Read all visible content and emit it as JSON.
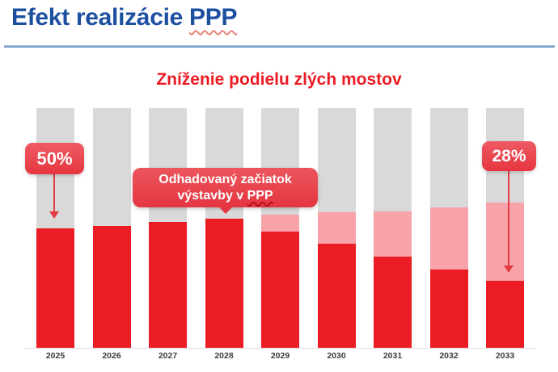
{
  "header": {
    "title_prefix": "Efekt realizácie ",
    "title_ppp": "PPP",
    "title_color": "#1d4fa1",
    "rule_color": "#7ba0cc"
  },
  "annotations": {
    "start_badge": {
      "label": "50%",
      "target_category": "2025"
    },
    "end_badge": {
      "label": "28%",
      "target_category": "2033"
    },
    "callout": {
      "line1": "Odhadovaný začiatok",
      "line2_prefix": "výstavby v ",
      "line2_ppp": "PPP",
      "target_category": "2028"
    },
    "badge_color": "#e7434c",
    "arrow_color": "#e23b44"
  },
  "chart_data": {
    "type": "bar",
    "stacked": true,
    "title": "Zníženie podielu zlých mostov",
    "title_color": "#ec1c24",
    "categories": [
      "2025",
      "2026",
      "2027",
      "2028",
      "2029",
      "2030",
      "2031",
      "2032",
      "2033"
    ],
    "unit": "%",
    "ylim": [
      0,
      100
    ],
    "xlabel": "",
    "ylabel": "",
    "grid": false,
    "legend": "none",
    "series": [
      {
        "name": "red",
        "color": "#ec1c24",
        "values": [
          50,
          51,
          52.5,
          54,
          48.5,
          43.5,
          38,
          32.5,
          28
        ]
      },
      {
        "name": "pink",
        "color": "#f8a2a9",
        "values": [
          0,
          0,
          0,
          0,
          7,
          13,
          19,
          26,
          32.5
        ]
      },
      {
        "name": "gray",
        "color": "#d9d9d9",
        "values": [
          50,
          49,
          47.5,
          46,
          44.5,
          43.5,
          43,
          41.5,
          39.5
        ]
      }
    ],
    "axis_line_color": "#d9d9d9",
    "tick_label_color": "#3d3d3d"
  }
}
